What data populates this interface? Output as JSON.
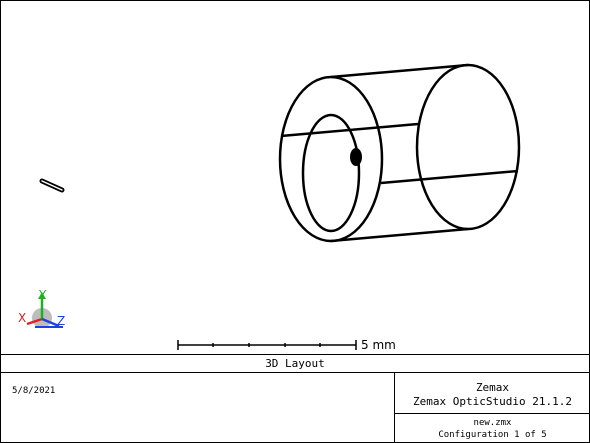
{
  "layout_title": "3D Layout",
  "scale_bar": {
    "label": "5 mm"
  },
  "axes": {
    "x_label": "X",
    "y_label": "Y",
    "z_label": "Z"
  },
  "footer": {
    "date": "5/8/2021",
    "company": "Zemax",
    "product": "Zemax OpticStudio 21.1.2",
    "file": "new.zmx",
    "configuration": "Configuration 1 of 5"
  },
  "colors": {
    "axis_x": "#e02020",
    "axis_y": "#20b020",
    "axis_z": "#2040e0",
    "lines": "#000000"
  }
}
